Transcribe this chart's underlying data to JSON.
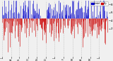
{
  "background_color": "#f0f0f0",
  "bar_color_blue": "#0000cc",
  "bar_color_red": "#cc0000",
  "legend_blue_label": "Humid",
  "legend_red_label": "Dry",
  "ylim": [
    -5,
    9
  ],
  "y_ticks": [
    2,
    4,
    6,
    8
  ],
  "num_days": 365,
  "seed": 7,
  "grid_color": "#bbbbbb",
  "month_positions": [
    0,
    31,
    59,
    90,
    120,
    151,
    181,
    212,
    243,
    273,
    304,
    334
  ],
  "month_labels": [
    "J",
    "A",
    "S",
    "O",
    "N",
    "D",
    "J",
    "F",
    "M",
    "A",
    "M",
    "J"
  ]
}
